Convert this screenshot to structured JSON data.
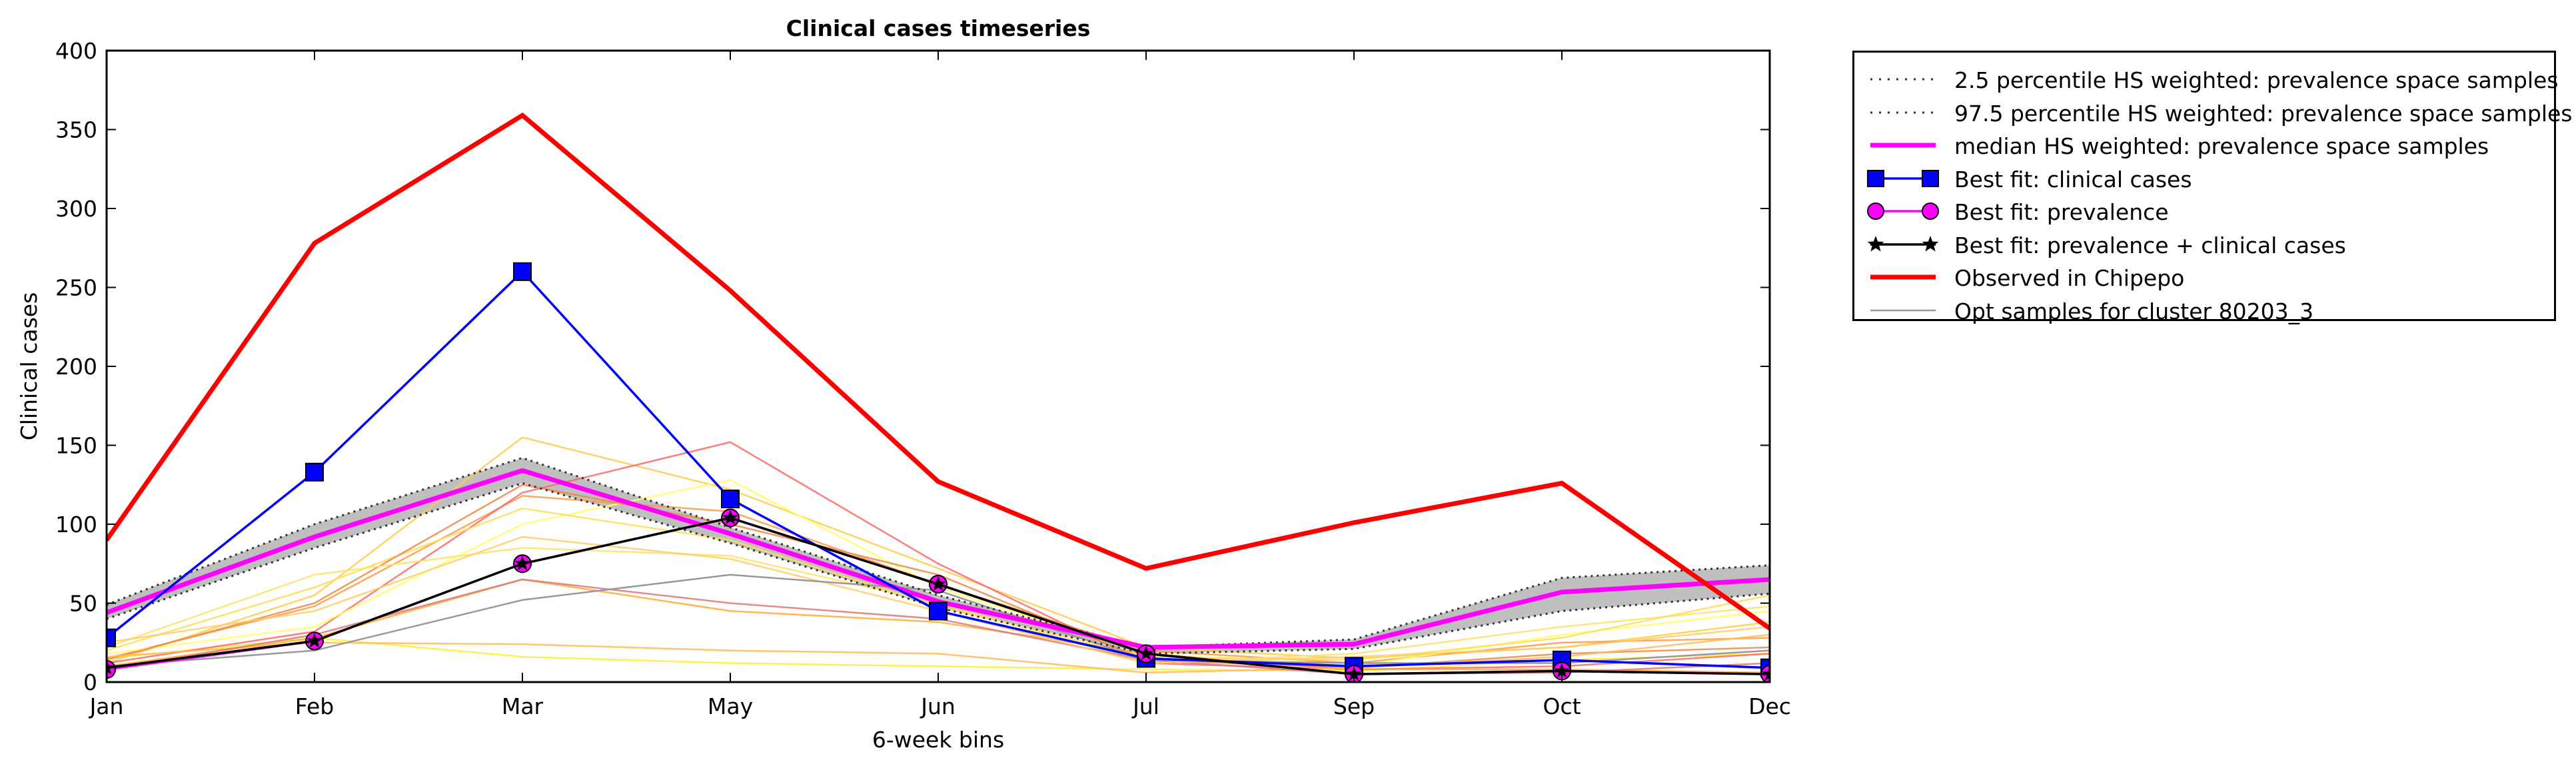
{
  "chart_data": {
    "type": "line",
    "title": "Clinical cases timeseries",
    "xlabel": "6-week bins",
    "ylabel": "Clinical cases",
    "categories": [
      "Jan",
      "Feb",
      "Mar",
      "May",
      "Jun",
      "Jul",
      "Sep",
      "Oct",
      "Dec"
    ],
    "ylim": [
      0,
      400
    ],
    "yticks": [
      0,
      50,
      100,
      150,
      200,
      250,
      300,
      350,
      400
    ],
    "legend_position": "outside-right",
    "band": {
      "name": "HS weighted: prevalence space samples 2.5-97.5 percentile",
      "lower": [
        40,
        85,
        126,
        88,
        47,
        18,
        21,
        45,
        56
      ],
      "upper": [
        49,
        100,
        142,
        98,
        55,
        22,
        27,
        66,
        74
      ],
      "color": "#bfbfbf"
    },
    "series": [
      {
        "name": "2.5 percentile HS weighted: prevalence space samples",
        "style": "dotted",
        "color": "#555555",
        "values": [
          40,
          85,
          126,
          88,
          47,
          18,
          21,
          45,
          56
        ]
      },
      {
        "name": "97.5 percentile HS weighted: prevalence space samples",
        "style": "dotted",
        "color": "#555555",
        "values": [
          49,
          100,
          142,
          98,
          55,
          22,
          27,
          66,
          74
        ]
      },
      {
        "name": "median HS weighted: prevalence space samples",
        "style": "solid-thick",
        "color": "#ff00ff",
        "values": [
          44,
          92,
          134,
          94,
          51,
          22,
          24,
          57,
          65
        ]
      },
      {
        "name": "Best fit: clinical cases",
        "style": "square-marker",
        "color": "#0000ff",
        "values": [
          28,
          133,
          260,
          116,
          45,
          15,
          10,
          14,
          9
        ]
      },
      {
        "name": "Best fit: prevalence",
        "style": "circle-marker",
        "color": "#ff00ff",
        "values": [
          8,
          26,
          75,
          104,
          62,
          18,
          5,
          7,
          5
        ]
      },
      {
        "name": "Best fit: prevalence + clinical cases",
        "style": "star-marker",
        "color": "#000000",
        "values": [
          9,
          26,
          75,
          104,
          62,
          18,
          5,
          7,
          5
        ]
      },
      {
        "name": "Observed in Chipepo",
        "style": "solid-thick",
        "color": "#ff0000",
        "values": [
          90,
          278,
          359,
          248,
          127,
          72,
          101,
          126,
          34
        ]
      },
      {
        "name": "Opt samples for cluster 80203_3",
        "style": "thin",
        "color": "#999999",
        "values": [
          10,
          20,
          52,
          68,
          58,
          14,
          12,
          12,
          20
        ]
      }
    ],
    "sample_lines": [
      {
        "color": "#ffee33",
        "values": [
          15,
          28,
          16,
          12,
          10,
          8,
          7,
          14,
          18
        ]
      },
      {
        "color": "#ffcc44",
        "values": [
          12,
          55,
          155,
          122,
          72,
          22,
          15,
          22,
          38
        ]
      },
      {
        "color": "#ff9944",
        "values": [
          15,
          48,
          118,
          108,
          62,
          20,
          12,
          25,
          28
        ]
      },
      {
        "color": "#ff6666",
        "values": [
          12,
          32,
          120,
          152,
          75,
          12,
          8,
          10,
          18
        ]
      },
      {
        "color": "#ffff66",
        "values": [
          18,
          35,
          100,
          128,
          60,
          18,
          10,
          30,
          45
        ]
      },
      {
        "color": "#ffaa33",
        "values": [
          10,
          28,
          65,
          45,
          38,
          18,
          8,
          8,
          6
        ]
      },
      {
        "color": "#ffdd55",
        "values": [
          20,
          60,
          110,
          90,
          48,
          16,
          14,
          28,
          55
        ]
      },
      {
        "color": "#ee8844",
        "values": [
          14,
          50,
          125,
          100,
          68,
          14,
          9,
          18,
          22
        ]
      },
      {
        "color": "#ffe066",
        "values": [
          22,
          68,
          85,
          80,
          50,
          12,
          18,
          35,
          48
        ]
      },
      {
        "color": "#ffbb55",
        "values": [
          16,
          25,
          24,
          20,
          18,
          6,
          9,
          16,
          30
        ]
      },
      {
        "color": "#dd7777",
        "values": [
          8,
          30,
          65,
          50,
          40,
          14,
          5,
          6,
          12
        ]
      },
      {
        "color": "#ffcc66",
        "values": [
          25,
          45,
          92,
          78,
          45,
          12,
          16,
          22,
          35
        ]
      }
    ]
  }
}
